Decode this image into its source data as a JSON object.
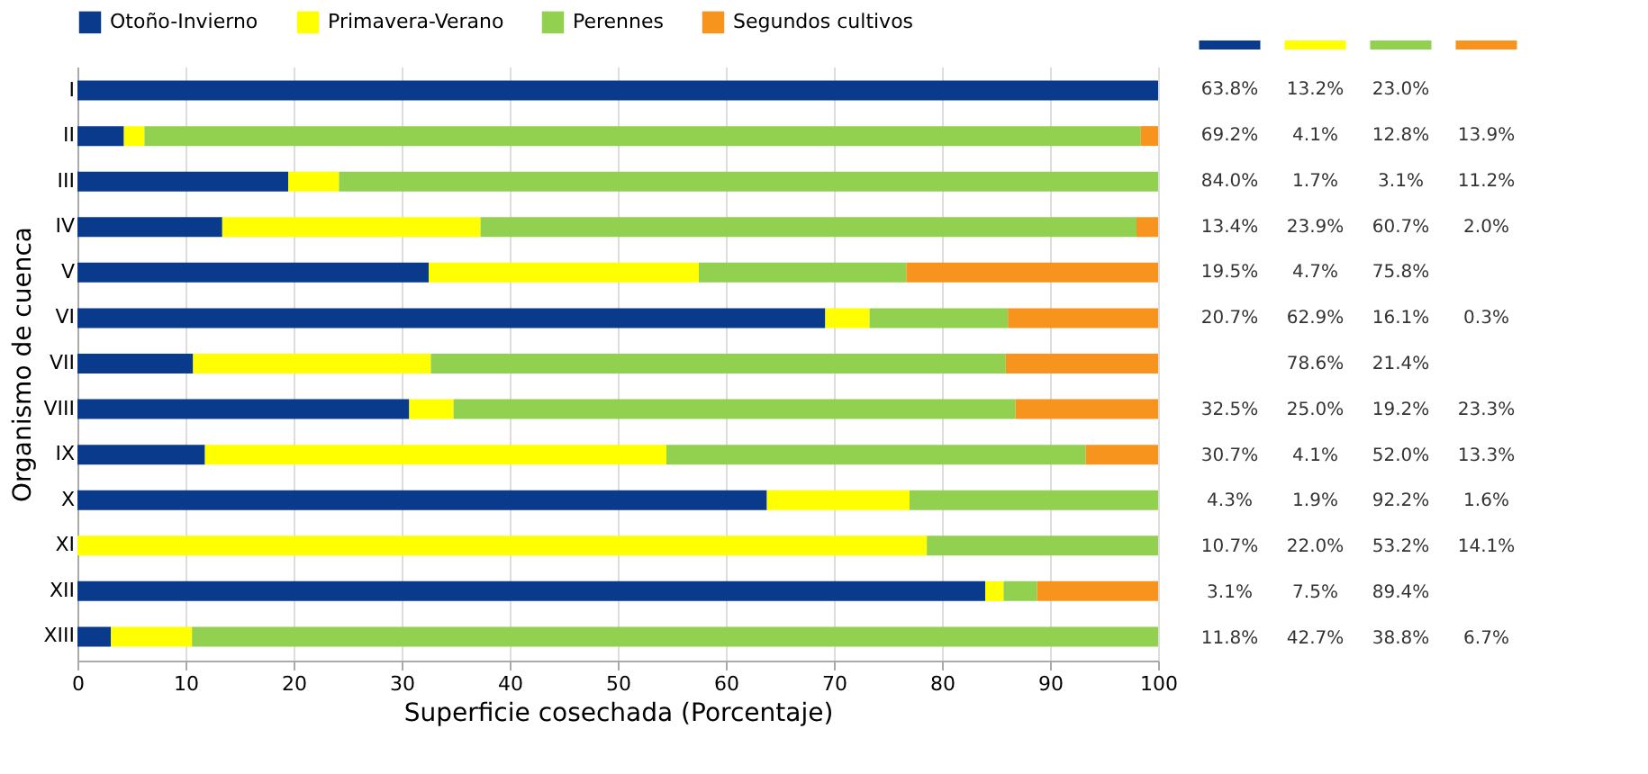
{
  "chart_data": [
    {
      "type": "bar",
      "orientation": "horizontal",
      "stacked": true,
      "ylabel": "Organismo de cuenca",
      "xlabel": "Superficie cosechada (Porcentaje)",
      "categories": [
        "I",
        "II",
        "III",
        "IV",
        "V",
        "VI",
        "VII",
        "VIII",
        "IX",
        "X",
        "XI",
        "XII",
        "XIII"
      ],
      "series": [
        {
          "name": "Otoño-Invierno",
          "color": "#0a3a8c",
          "values": [
            100,
            4.3,
            19.5,
            13.4,
            32.5,
            69.2,
            10.7,
            30.7,
            11.8,
            63.8,
            0,
            84.0,
            3.1
          ]
        },
        {
          "name": "Primavera-Verano",
          "color": "#ffff00",
          "values": [
            0,
            1.9,
            4.7,
            23.9,
            25.0,
            4.1,
            22.0,
            4.1,
            42.7,
            13.2,
            78.6,
            1.7,
            7.5
          ]
        },
        {
          "name": "Perennes",
          "color": "#92d050",
          "values": [
            0,
            92.2,
            75.8,
            60.7,
            19.2,
            12.8,
            53.2,
            52.0,
            38.8,
            23.0,
            21.4,
            3.1,
            89.4
          ]
        },
        {
          "name": "Segundos cultivos",
          "color": "#f7941d",
          "values": [
            0,
            1.6,
            0,
            2.0,
            23.3,
            13.9,
            14.1,
            13.2,
            6.7,
            0,
            0,
            11.2,
            0
          ]
        }
      ],
      "xlim": [
        0,
        100
      ],
      "xticks": [
        0,
        10,
        20,
        30,
        40,
        50,
        60,
        70,
        80,
        90,
        100
      ],
      "grid": "x",
      "legend": "top"
    },
    {
      "type": "heatmap",
      "categories": [
        null,
        null,
        null,
        null
      ],
      "y_categories": [
        null,
        null,
        null,
        null,
        null,
        null,
        null,
        null,
        null,
        null,
        null,
        null,
        null
      ],
      "cells": [
        [
          63.8,
          13.2,
          23.0,
          null
        ],
        [
          69.2,
          4.1,
          12.8,
          13.9
        ],
        [
          84.0,
          1.7,
          3.1,
          11.2
        ],
        [
          13.4,
          23.9,
          60.7,
          2.0
        ],
        [
          19.5,
          4.7,
          75.8,
          null
        ],
        [
          20.7,
          62.9,
          16.1,
          0.3
        ],
        [
          null,
          78.6,
          21.4,
          null
        ],
        [
          32.5,
          25.0,
          19.2,
          23.3
        ],
        [
          30.7,
          4.1,
          52.0,
          13.3
        ],
        [
          4.3,
          1.9,
          92.2,
          1.6
        ],
        [
          10.7,
          22.0,
          53.2,
          14.1
        ],
        [
          3.1,
          7.5,
          89.4,
          null
        ],
        [
          11.8,
          42.7,
          38.8,
          6.7
        ]
      ],
      "cell_labels": [
        [
          "63.8%",
          "13.2%",
          "23.0%",
          null
        ],
        [
          "69.2%",
          "4.1%",
          "12.8%",
          "13.9%"
        ],
        [
          "84.0%",
          "1.7%",
          "3.1%",
          "11.2%"
        ],
        [
          "13.4%",
          "23.9%",
          "60.7%",
          "2.0%"
        ],
        [
          "19.5%",
          "4.7%",
          "75.8%",
          null
        ],
        [
          "20.7%",
          "62.9%",
          "16.1%",
          "0.3%"
        ],
        [
          null,
          "78.6%",
          "21.4%",
          null
        ],
        [
          "32.5%",
          "25.0%",
          "19.2%",
          "23.3%"
        ],
        [
          "30.7%",
          "4.1%",
          "52.0%",
          "13.3%"
        ],
        [
          "4.3%",
          "1.9%",
          "92.2%",
          "1.6%"
        ],
        [
          "10.7%",
          "22.0%",
          "53.2%",
          "14.1%"
        ],
        [
          "3.1%",
          "7.5%",
          "89.4%",
          null
        ],
        [
          "11.8%",
          "42.7%",
          "38.8%",
          "6.7%"
        ]
      ]
    }
  ]
}
